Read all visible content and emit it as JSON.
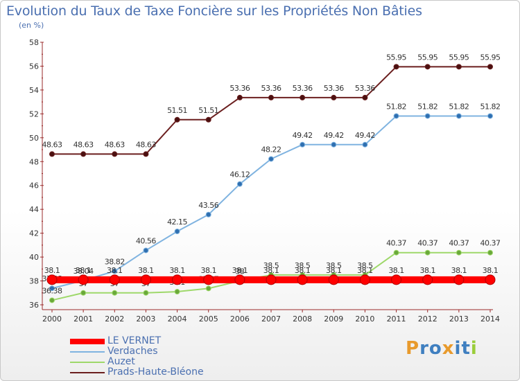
{
  "header": {
    "title": "Evolution du Taux de Taxe Foncière sur les Propriétés Non Bâties",
    "subtitle": "(en %)"
  },
  "brand": {
    "text": "Proxiti",
    "letters": [
      {
        "ch": "P",
        "color": "#e89a2c"
      },
      {
        "ch": "r",
        "color": "#3f7fc0"
      },
      {
        "ch": "o",
        "color": "#3f7fc0"
      },
      {
        "ch": "x",
        "color": "#e89a2c"
      },
      {
        "ch": "i",
        "color": "#3f7fc0"
      },
      {
        "ch": "t",
        "color": "#3f7fc0"
      },
      {
        "ch": "i",
        "color": "#9acd3a"
      }
    ]
  },
  "chart_data": {
    "type": "line",
    "title": "Evolution du Taux de Taxe Foncière sur les Propriétés Non Bâties",
    "ylabel": "(en %)",
    "xlabel": "",
    "ylim": [
      36,
      58
    ],
    "yticks": [
      "36",
      "38",
      "40",
      "42",
      "44",
      "46",
      "48",
      "50",
      "52",
      "54",
      "56",
      "58"
    ],
    "grid": false,
    "legend_position": "bottom-left",
    "categories": [
      "2000",
      "2001",
      "2002",
      "2003",
      "2004",
      "2005",
      "2006",
      "2007",
      "2008",
      "2009",
      "2010",
      "2011",
      "2012",
      "2013",
      "2014"
    ],
    "series": [
      {
        "name": "Prads-Haute-Bléone",
        "color": "#6b1f1f",
        "values": [
          48.63,
          48.63,
          48.63,
          48.63,
          51.51,
          51.51,
          53.36,
          53.36,
          53.36,
          53.36,
          53.36,
          55.95,
          55.95,
          55.95,
          55.95
        ],
        "labels": [
          "48.63",
          "48.63",
          "48.63",
          "48.63",
          "51.51",
          "51.51",
          "53.36",
          "53.36",
          "53.36",
          "53.36",
          "53.36",
          "55.95",
          "55.95",
          "55.95",
          "55.95"
        ]
      },
      {
        "name": "Verdaches",
        "color": "#7fb3e0",
        "values": [
          37.38,
          38.04,
          38.82,
          40.56,
          42.15,
          43.56,
          46.12,
          48.22,
          49.42,
          49.42,
          49.42,
          51.82,
          51.82,
          51.82,
          51.82
        ],
        "labels": [
          "37.38",
          "38.04",
          "38.82",
          "40.56",
          "42.15",
          "43.56",
          "46.12",
          "48.22",
          "49.42",
          "49.42",
          "49.42",
          "51.82",
          "51.82",
          "51.82",
          "51.82"
        ]
      },
      {
        "name": "Auzet",
        "color": "#9ed86a",
        "values": [
          36.38,
          37,
          37,
          37,
          37.1,
          37.37,
          38,
          38.5,
          38.5,
          38.5,
          38.5,
          40.37,
          40.37,
          40.37,
          40.37
        ],
        "labels": [
          "36.38",
          "37",
          "37",
          "37",
          "37.1",
          "37.37",
          "38",
          "38.5",
          "38.5",
          "38.5",
          "38.5",
          "40.37",
          "40.37",
          "40.37",
          "40.37"
        ]
      },
      {
        "name": "LE VERNET",
        "color": "#ff0000",
        "values": [
          38.1,
          38.1,
          38.1,
          38.1,
          38.1,
          38.1,
          38.1,
          38.1,
          38.1,
          38.1,
          38.1,
          38.1,
          38.1,
          38.1,
          38.1
        ],
        "labels": [
          "38.1",
          "38.1",
          "38.1",
          "38.1",
          "38.1",
          "38.1",
          "38.1",
          "38.1",
          "38.1",
          "38.1",
          "38.1",
          "38.1",
          "38.1",
          "38.1",
          "38.1"
        ]
      }
    ],
    "legend": [
      "LE VERNET",
      "Verdaches",
      "Auzet",
      "Prads-Haute-Bléone"
    ]
  }
}
